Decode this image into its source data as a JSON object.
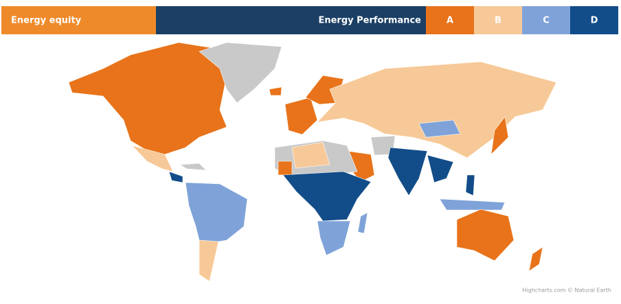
{
  "header": {
    "title": "Energy equity",
    "legend_title": "Energy Performance",
    "grades": [
      {
        "label": "A",
        "color": "#e8731a"
      },
      {
        "label": "B",
        "color": "#f7c998"
      },
      {
        "label": "C",
        "color": "#7fa3d9"
      },
      {
        "label": "D",
        "color": "#124d89"
      }
    ]
  },
  "credits": "Highcharts.com © Natural Earth"
}
